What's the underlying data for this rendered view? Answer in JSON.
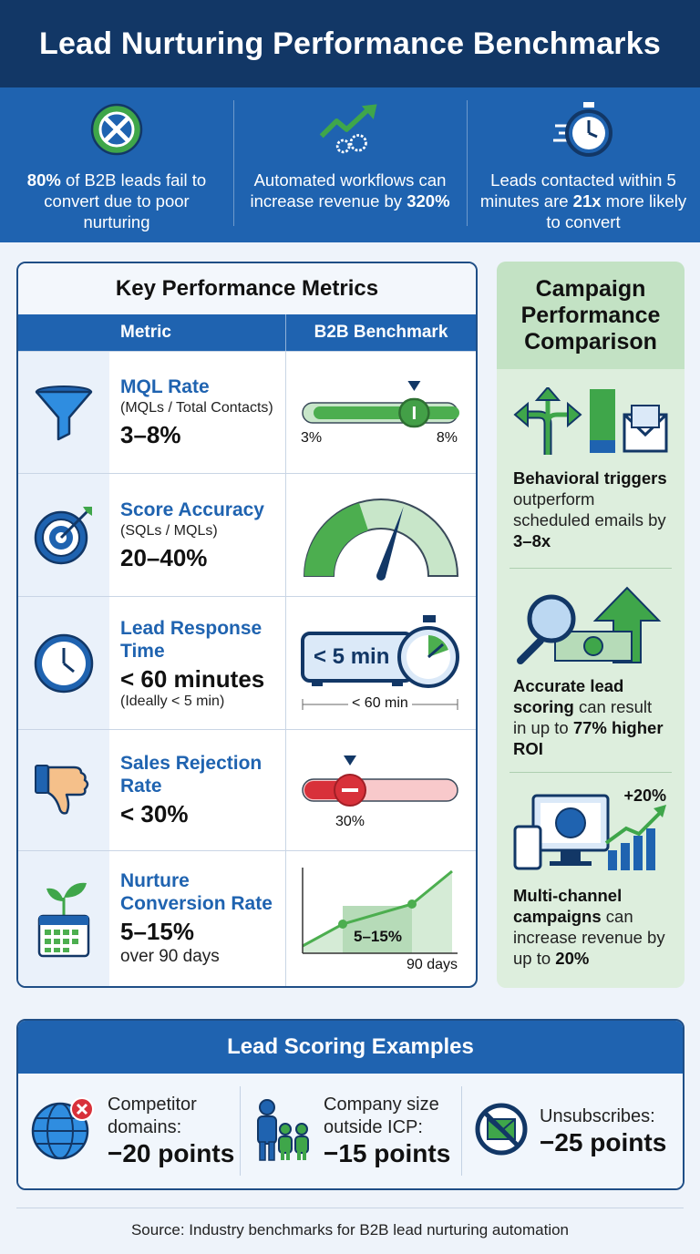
{
  "title": "Lead Nurturing Performance Benchmarks",
  "stats": [
    {
      "bold": "80%",
      "text": " of B2B leads fail to convert due to poor nurturing"
    },
    {
      "pre": "Automated workflows can increase revenue by ",
      "bold": "320%"
    },
    {
      "pre": "Leads contacted within 5 minutes are ",
      "bold": "21x",
      "post": " more likely to convert"
    }
  ],
  "kpi": {
    "title": "Key Performance Metrics",
    "col_metric": "Metric",
    "col_benchmark": "B2B Benchmark",
    "rows": [
      {
        "name": "MQL Rate",
        "formula": "(MQLs / Total Contacts)",
        "value": "3–8%",
        "min_label": "3%",
        "max_label": "8%",
        "marker_fraction": 0.72
      },
      {
        "name": "Score Accuracy",
        "formula": "(SQLs / MQLs)",
        "value": "20–40%",
        "gauge_fraction": 0.6
      },
      {
        "name": "Lead Response Time",
        "value": "< 60 minutes",
        "note": "(Ideally < 5 min)",
        "timer_label": "< 5 min",
        "axis_label": "< 60 min"
      },
      {
        "name": "Sales Rejection Rate",
        "value": "< 30%",
        "marker_label": "30%",
        "marker_fraction": 0.3
      },
      {
        "name": "Nurture Conversion Rate",
        "value": "5–15%",
        "sub": "over 90 days",
        "band_label": "5–15%",
        "x_label": "90 days"
      }
    ]
  },
  "side": {
    "title": "Campaign Performance Comparison",
    "items": [
      {
        "bold": "Behavioral triggers",
        "text": " outperform scheduled emails by ",
        "bold2": "3–8x"
      },
      {
        "bold": "Accurate lead scoring",
        "text": " can result in up to ",
        "bold2": "77% higher ROI"
      },
      {
        "bold": "Multi-channel campaigns",
        "text": " can increase revenue by up to ",
        "bold2": "20%",
        "badge": "+20%"
      }
    ]
  },
  "scoring": {
    "title": "Lead Scoring Examples",
    "items": [
      {
        "label": "Competitor domains:",
        "points": "−20 points"
      },
      {
        "label": "Company size outside ICP:",
        "points": "−15 points"
      },
      {
        "label": "Unsubscribes:",
        "points": "−25 points"
      }
    ]
  },
  "source": "Source: Industry benchmarks for B2B lead nurturing automation",
  "colors": {
    "navy": "#123766",
    "blue": "#1f63b0",
    "green": "#3fa64a",
    "light_green": "#c3e2c4",
    "red": "#d8313a"
  }
}
